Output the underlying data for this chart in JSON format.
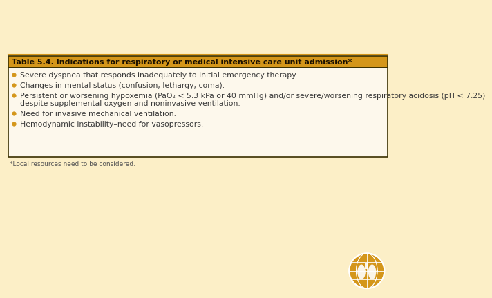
{
  "bg_color": "#fcefc7",
  "table_border_color": "#3a3000",
  "header_bg_color": "#d4961a",
  "header_text_color": "#1a1000",
  "header_text": "Table 5.4. Indications for respiratory or medical intensive care unit admission*",
  "body_bg_color": "#fdf8ec",
  "bullet_color": "#d4961a",
  "body_text_color": "#3a3a3a",
  "bullet_items": [
    "Severe dyspnea that responds inadequately to initial emergency therapy.",
    "Changes in mental status (confusion, lethargy, coma).",
    "Persistent or worsening hypoxemia (PaO₂ < 5.3 kPa or 40 mmHg) and/or severe/worsening respiratory acidosis (pH < 7.25)\ndespite supplemental oxygen and noninvasive ventilation.",
    "Need for invasive mechanical ventilation.",
    "Hemodynamic instability–need for vasopressors."
  ],
  "footnote": "*Local resources need to be considered.",
  "footnote_color": "#555555",
  "globe_color": "#d4961a",
  "header_fontsize": 8.0,
  "body_fontsize": 7.8,
  "footnote_fontsize": 6.5
}
